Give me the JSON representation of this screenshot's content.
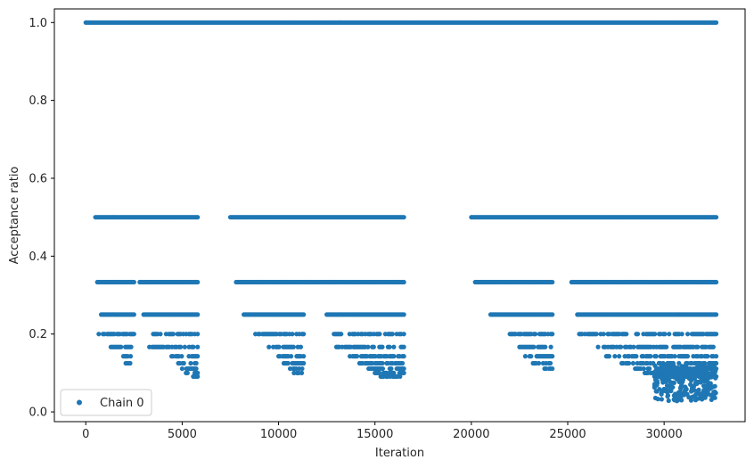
{
  "chart_data": {
    "type": "scatter",
    "xlabel": "Iteration",
    "ylabel": "Acceptance ratio",
    "xlim": [
      -1630,
      34200
    ],
    "ylim": [
      -0.025,
      1.035
    ],
    "xticks": [
      0,
      5000,
      10000,
      15000,
      20000,
      25000,
      30000
    ],
    "yticks": [
      0.0,
      0.2,
      0.4,
      0.6,
      0.8,
      1.0
    ],
    "xtick_labels": [
      "0",
      "5000",
      "10000",
      "15000",
      "20000",
      "25000",
      "30000"
    ],
    "ytick_labels": [
      "0.0",
      "0.2",
      "0.4",
      "0.6",
      "0.8",
      "1.0"
    ],
    "grid": false,
    "legend_position": "lower-left",
    "series": [
      {
        "name": "Chain 0",
        "color": "#1f77b4",
        "marker": "circle",
        "level_bands": [
          {
            "y": 1.0,
            "x_ranges": [
              [
                0,
                32700
              ]
            ]
          },
          {
            "y": 0.5,
            "x_ranges": [
              [
                500,
                5800
              ],
              [
                7500,
                16500
              ],
              [
                20000,
                32700
              ]
            ]
          },
          {
            "y": 0.3333,
            "x_ranges": [
              [
                600,
                2500
              ],
              [
                2800,
                5800
              ],
              [
                7800,
                16500
              ],
              [
                20200,
                24200
              ],
              [
                25200,
                32700
              ]
            ]
          },
          {
            "y": 0.25,
            "x_ranges": [
              [
                800,
                2500
              ],
              [
                3000,
                5800
              ],
              [
                8200,
                11300
              ],
              [
                12500,
                16500
              ],
              [
                21000,
                24200
              ],
              [
                25500,
                32700
              ]
            ]
          },
          {
            "y": 0.2,
            "x_ranges": [
              [
                600,
                2500
              ],
              [
                3500,
                5800
              ],
              [
                8800,
                11300
              ],
              [
                12800,
                16500
              ],
              [
                22000,
                24200
              ],
              [
                25600,
                32700
              ]
            ]
          },
          {
            "y": 0.1667,
            "x_ranges": [
              [
                1300,
                2500
              ],
              [
                3300,
                5800
              ],
              [
                9500,
                11300
              ],
              [
                13000,
                16500
              ],
              [
                22500,
                24200
              ],
              [
                26500,
                32700
              ]
            ]
          },
          {
            "y": 0.1429,
            "x_ranges": [
              [
                1800,
                2400
              ],
              [
                4300,
                5800
              ],
              [
                10000,
                11300
              ],
              [
                13700,
                16500
              ],
              [
                22800,
                24200
              ],
              [
                27000,
                32700
              ]
            ]
          },
          {
            "y": 0.125,
            "x_ranges": [
              [
                2000,
                2300
              ],
              [
                4800,
                5800
              ],
              [
                10200,
                11300
              ],
              [
                14200,
                16500
              ],
              [
                23200,
                24100
              ],
              [
                27800,
                32700
              ]
            ]
          },
          {
            "y": 0.1111,
            "x_ranges": [
              [
                5000,
                5800
              ],
              [
                10600,
                11300
              ],
              [
                14600,
                16500
              ],
              [
                23800,
                24200
              ],
              [
                28500,
                32700
              ]
            ]
          },
          {
            "y": 0.1,
            "x_ranges": [
              [
                5200,
                5800
              ],
              [
                10800,
                11200
              ],
              [
                15000,
                16500
              ],
              [
                29000,
                32700
              ]
            ]
          },
          {
            "y": 0.0909,
            "x_ranges": [
              [
                5500,
                5800
              ],
              [
                15300,
                16300
              ],
              [
                29500,
                32700
              ]
            ]
          }
        ],
        "scatter_cloud": {
          "x_range": [
            29500,
            32700
          ],
          "y_range": [
            0.028,
            0.12
          ]
        }
      }
    ]
  }
}
